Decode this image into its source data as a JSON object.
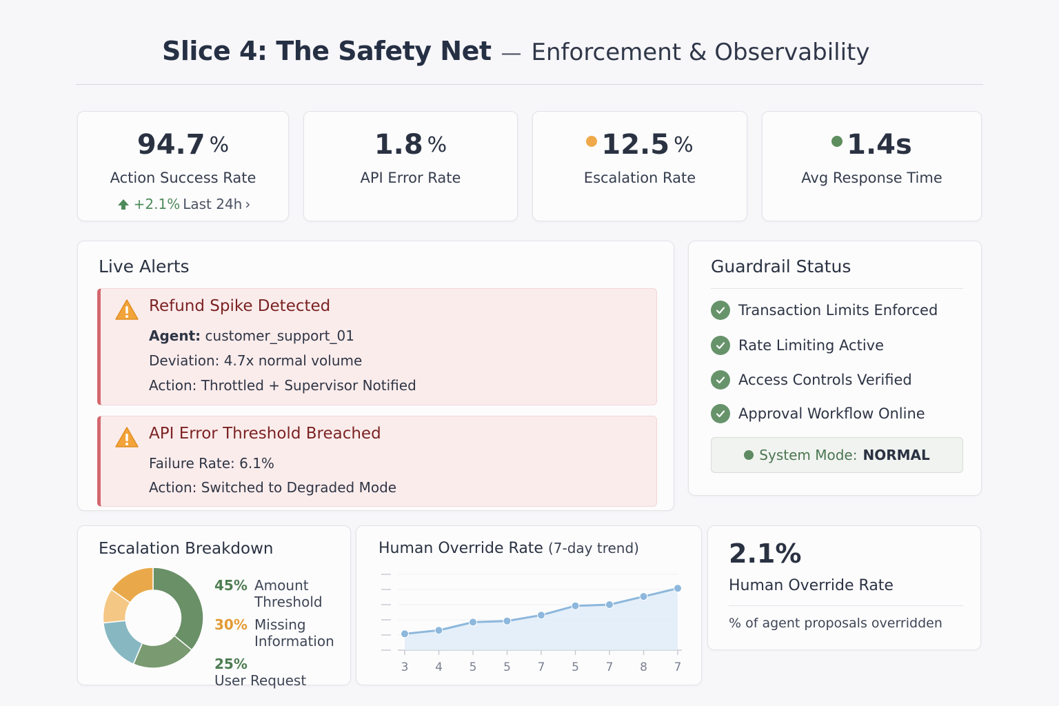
{
  "header": {
    "title": "Slice 4: The Safety Net",
    "separator": "—",
    "subtitle": "Enforcement & Observability"
  },
  "kpis": [
    {
      "value": "94.7",
      "unit": "%",
      "label": "Action Success Rate",
      "trend_value": "+2.1%",
      "trend_label": "Last 24h",
      "trend_chevron": "›"
    },
    {
      "value": "1.8",
      "unit": "%",
      "label": "API Error Rate"
    },
    {
      "value": "12.5",
      "unit": "%",
      "label": "Escalation Rate",
      "indicator_color": "#f0a94a"
    },
    {
      "value": "1.4s",
      "unit": "",
      "label": "Avg Response Time",
      "indicator_color": "#5e8e5f"
    }
  ],
  "live_alerts": {
    "title": "Live Alerts",
    "alerts": [
      {
        "title": "Refund Spike Detected",
        "agent_label": "Agent:",
        "agent_value": "customer_support_01",
        "lines": [
          "Deviation: 4.7x normal volume",
          "Action: Throttled + Supervisor Notified"
        ]
      },
      {
        "title": "API Error Threshold Breached",
        "lines": [
          "Failure Rate: 6.1%",
          "Action: Switched  to Degraded Mode"
        ]
      }
    ]
  },
  "guardrails": {
    "title": "Guardrail Status",
    "items": [
      "Transaction Limits Enforced",
      "Rate Limiting Active",
      "Access Controls Verified",
      "Approval Workflow Online"
    ],
    "mode_label": "System Mode:",
    "mode_value": "NORMAL"
  },
  "escalation": {
    "title": "Escalation Breakdown",
    "segments": [
      {
        "pct": "45%",
        "label": "Amount Threshold",
        "color": "#6a9068",
        "text_color": "#4e7d52"
      },
      {
        "pct": "30%",
        "label": "Missing Information",
        "color": "#e9a94b",
        "text_color": "#e39a33"
      },
      {
        "pct": "25%",
        "label": "User Request",
        "color": "#87b8c2",
        "text_color": "#4e7d52"
      }
    ]
  },
  "override_trend": {
    "title": "Human Override Rate",
    "subtitle": "(7-day trend)"
  },
  "chart_data": {
    "type": "line",
    "title": "Human Override Rate (7-day trend)",
    "categories": [
      "3",
      "4",
      "5",
      "5",
      "7",
      "5",
      "7",
      "8",
      "7"
    ],
    "values": [
      0.6,
      0.9,
      1.6,
      1.7,
      2.2,
      3.0,
      3.1,
      3.8,
      4.5
    ],
    "ylim": [
      -0.8,
      5.7
    ],
    "grid": true,
    "xlabel": "",
    "ylabel": "",
    "colors": {
      "line": "#8db7dc",
      "fill": "#dcebf7",
      "point": "#8db7dc"
    }
  },
  "override_stat": {
    "value": "2.1%",
    "label": "Human Override Rate",
    "description": "% of agent proposals overridden"
  }
}
